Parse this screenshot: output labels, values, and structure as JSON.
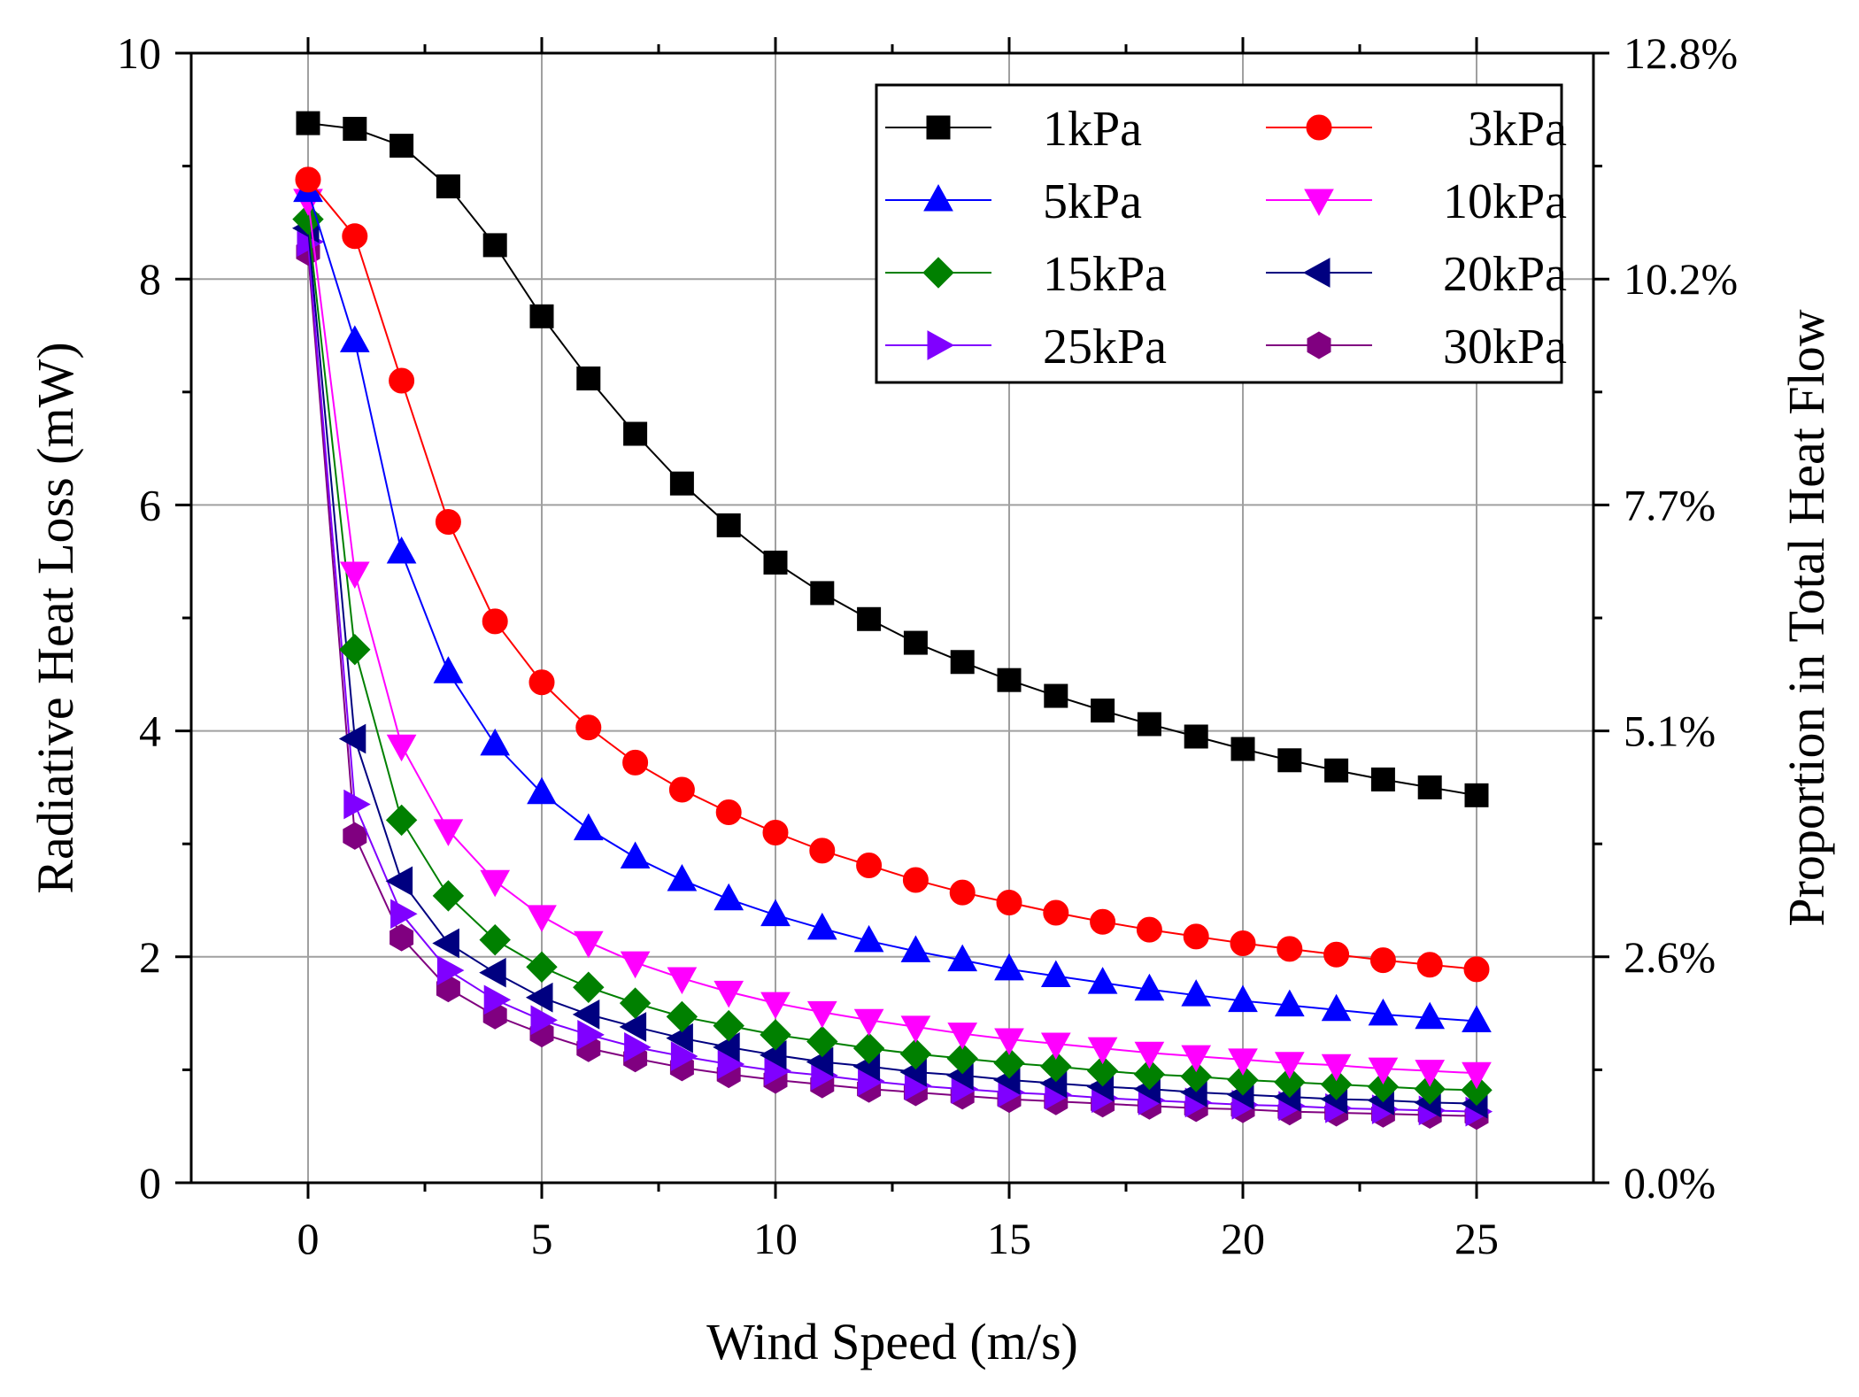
{
  "chart_data": {
    "type": "line",
    "xlabel": "Wind Speed (m/s)",
    "ylabel": "Radiative Heat Loss (mW)",
    "y2label": "Proportion in Total Heat Flow",
    "xlim": [
      -2.5,
      27.5
    ],
    "ylim": [
      0,
      10
    ],
    "x_ticks": [
      "0",
      "5",
      "10",
      "15",
      "20",
      "25"
    ],
    "y_ticks": [
      "0",
      "2",
      "4",
      "6",
      "8",
      "10"
    ],
    "y2_ticks": [
      "0.0%",
      "2.6%",
      "5.1%",
      "7.7%",
      "10.2%",
      "12.8%"
    ],
    "grid": true,
    "legend_position": "top-right",
    "x": [
      0,
      1,
      2,
      3,
      4,
      5,
      6,
      7,
      8,
      9,
      10,
      11,
      12,
      13,
      14,
      15,
      16,
      17,
      18,
      19,
      20,
      21,
      22,
      23,
      24,
      25
    ],
    "series": [
      {
        "name": "1kPa",
        "color": "#000000",
        "marker": "square",
        "values": [
          9.38,
          9.33,
          9.18,
          8.82,
          8.3,
          7.67,
          7.12,
          6.63,
          6.19,
          5.82,
          5.49,
          5.22,
          4.99,
          4.78,
          4.61,
          4.45,
          4.31,
          4.18,
          4.06,
          3.95,
          3.84,
          3.74,
          3.65,
          3.57,
          3.5,
          3.43
        ]
      },
      {
        "name": "3kPa",
        "color": "#ff0000",
        "marker": "circle",
        "values": [
          8.88,
          8.38,
          7.1,
          5.85,
          4.97,
          4.43,
          4.03,
          3.72,
          3.48,
          3.28,
          3.1,
          2.94,
          2.81,
          2.68,
          2.57,
          2.48,
          2.39,
          2.31,
          2.24,
          2.18,
          2.12,
          2.07,
          2.02,
          1.97,
          1.93,
          1.89
        ]
      },
      {
        "name": "5kPa",
        "color": "#0000ff",
        "marker": "triangle-up",
        "values": [
          8.78,
          7.45,
          5.58,
          4.52,
          3.88,
          3.45,
          3.13,
          2.88,
          2.68,
          2.51,
          2.37,
          2.25,
          2.14,
          2.05,
          1.97,
          1.89,
          1.83,
          1.77,
          1.71,
          1.66,
          1.61,
          1.57,
          1.53,
          1.49,
          1.46,
          1.43
        ]
      },
      {
        "name": "10kPa",
        "color": "#ff00ff",
        "marker": "triangle-down",
        "values": [
          8.7,
          5.4,
          3.87,
          3.12,
          2.67,
          2.36,
          2.13,
          1.95,
          1.81,
          1.69,
          1.59,
          1.51,
          1.44,
          1.38,
          1.32,
          1.27,
          1.23,
          1.19,
          1.15,
          1.12,
          1.09,
          1.06,
          1.04,
          1.01,
          0.99,
          0.97
        ]
      },
      {
        "name": "15kPa",
        "color": "#008000",
        "marker": "diamond",
        "values": [
          8.53,
          4.72,
          3.21,
          2.54,
          2.15,
          1.91,
          1.73,
          1.59,
          1.47,
          1.39,
          1.31,
          1.25,
          1.19,
          1.14,
          1.1,
          1.06,
          1.03,
          0.99,
          0.96,
          0.94,
          0.91,
          0.89,
          0.87,
          0.85,
          0.83,
          0.82
        ]
      },
      {
        "name": "20kPa",
        "color": "#000080",
        "marker": "triangle-left",
        "values": [
          8.45,
          3.93,
          2.67,
          2.12,
          1.86,
          1.64,
          1.49,
          1.38,
          1.28,
          1.2,
          1.13,
          1.07,
          1.03,
          0.98,
          0.95,
          0.91,
          0.88,
          0.85,
          0.83,
          0.8,
          0.78,
          0.76,
          0.74,
          0.73,
          0.71,
          0.7
        ]
      },
      {
        "name": "25kPa",
        "color": "#8000ff",
        "marker": "triangle-right",
        "values": [
          8.33,
          3.35,
          2.38,
          1.88,
          1.62,
          1.44,
          1.31,
          1.2,
          1.12,
          1.05,
          0.99,
          0.95,
          0.9,
          0.86,
          0.83,
          0.8,
          0.78,
          0.75,
          0.73,
          0.71,
          0.69,
          0.68,
          0.66,
          0.65,
          0.64,
          0.63
        ]
      },
      {
        "name": "30kPa",
        "color": "#800080",
        "marker": "hexagon",
        "values": [
          8.24,
          3.07,
          2.17,
          1.72,
          1.48,
          1.32,
          1.19,
          1.1,
          1.02,
          0.96,
          0.91,
          0.87,
          0.83,
          0.8,
          0.77,
          0.74,
          0.72,
          0.7,
          0.68,
          0.66,
          0.65,
          0.63,
          0.62,
          0.61,
          0.6,
          0.59
        ]
      }
    ]
  }
}
